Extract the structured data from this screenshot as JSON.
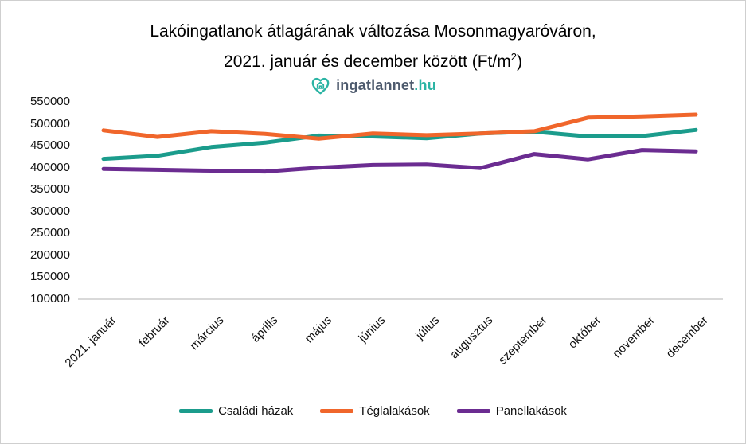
{
  "title": {
    "line1": "Lakóingatlanok átlagárának változása Mosonmagyaróváron,",
    "line2_pre": "2021. január és december között (Ft/m",
    "line2_sup": "2",
    "line2_post": ")"
  },
  "logo": {
    "text_main": "ingatlannet",
    "text_tld": ".hu",
    "icon_color": "#2bb4a4",
    "text_color": "#4e5b6e"
  },
  "chart_data": {
    "type": "line",
    "title": "Lakóingatlanok átlagárának változása Mosonmagyaróváron, 2021. január és december között (Ft/m2)",
    "categories": [
      "2021. január",
      "február",
      "március",
      "április",
      "május",
      "június",
      "július",
      "augusztus",
      "szeptember",
      "október",
      "november",
      "december"
    ],
    "series": [
      {
        "name": "Családi házak",
        "color": "#1b9c8c",
        "values": [
          420000,
          427000,
          447000,
          457000,
          473000,
          471000,
          467000,
          478000,
          482000,
          471000,
          472000,
          486000
        ]
      },
      {
        "name": "Téglalakások",
        "color": "#f0662b",
        "values": [
          485000,
          470000,
          483000,
          477000,
          466000,
          478000,
          474000,
          478000,
          483000,
          514000,
          517000,
          521000
        ]
      },
      {
        "name": "Panellakások",
        "color": "#6b2c91",
        "values": [
          397000,
          395000,
          393000,
          391000,
          400000,
          406000,
          407000,
          399000,
          431000,
          419000,
          440000,
          437000
        ]
      }
    ],
    "ylim": [
      100000,
      550000
    ],
    "y_tick_step": 50000,
    "y_tick_labels": [
      "550000",
      "500000",
      "450000",
      "400000",
      "350000",
      "300000",
      "250000",
      "200000",
      "150000",
      "100000"
    ],
    "xlabel": "",
    "ylabel": "",
    "grid": false,
    "legend_position": "bottom",
    "axis_color": "#d9d9d9"
  }
}
